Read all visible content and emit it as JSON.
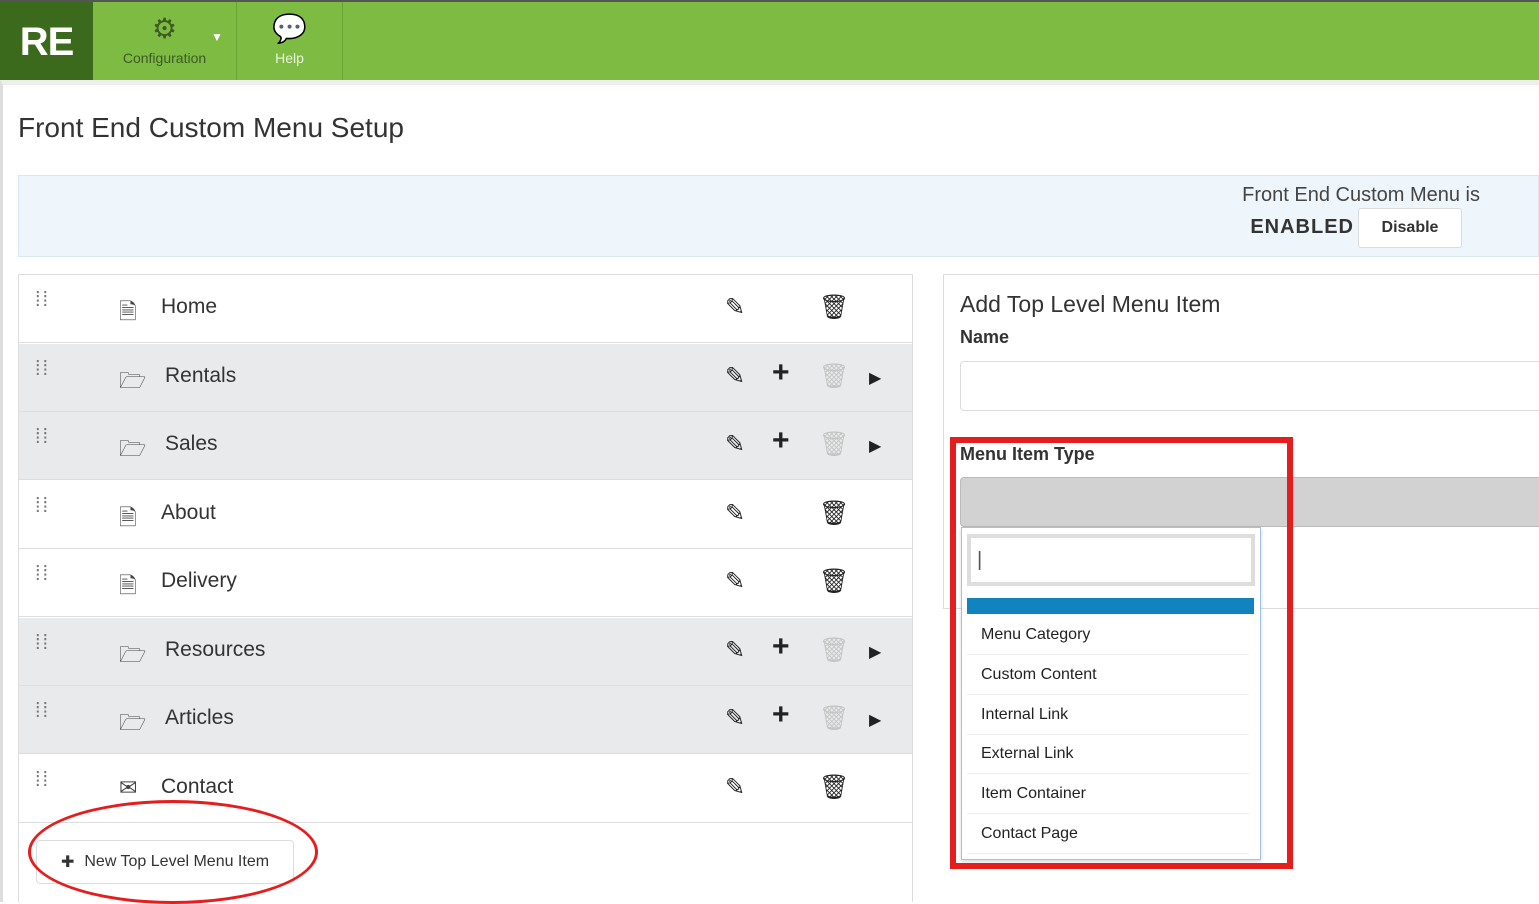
{
  "header": {
    "logo": "RE",
    "nav": [
      {
        "label": "Configuration",
        "icon": "gear-icon"
      },
      {
        "label": "Help",
        "icon": "chat-help-icon"
      }
    ]
  },
  "page": {
    "title": "Front End Custom Menu Setup"
  },
  "banner": {
    "text": "Front End Custom Menu is",
    "status": "ENABLED",
    "button": "Disable"
  },
  "menu": {
    "items": [
      {
        "label": "Home",
        "type": "page"
      },
      {
        "label": "Rentals",
        "type": "folder"
      },
      {
        "label": "Sales",
        "type": "folder"
      },
      {
        "label": "About",
        "type": "page"
      },
      {
        "label": "Delivery",
        "type": "page"
      },
      {
        "label": "Resources",
        "type": "folder"
      },
      {
        "label": "Articles",
        "type": "folder"
      },
      {
        "label": "Contact",
        "type": "contact"
      }
    ],
    "new_button": "New Top Level Menu Item"
  },
  "form": {
    "title": "Add Top Level Menu Item",
    "name_label": "Name",
    "name_value": "",
    "type_label": "Menu Item Type",
    "search_value": "|",
    "options": [
      "Menu Category",
      "Custom Content",
      "Internal Link",
      "External Link",
      "Item Container",
      "Contact Page"
    ]
  },
  "colors": {
    "brand": "#7dbb42",
    "logo_bg": "#3b6a1c",
    "highlight": "#1184c0",
    "annotation": "#e51d1d"
  }
}
